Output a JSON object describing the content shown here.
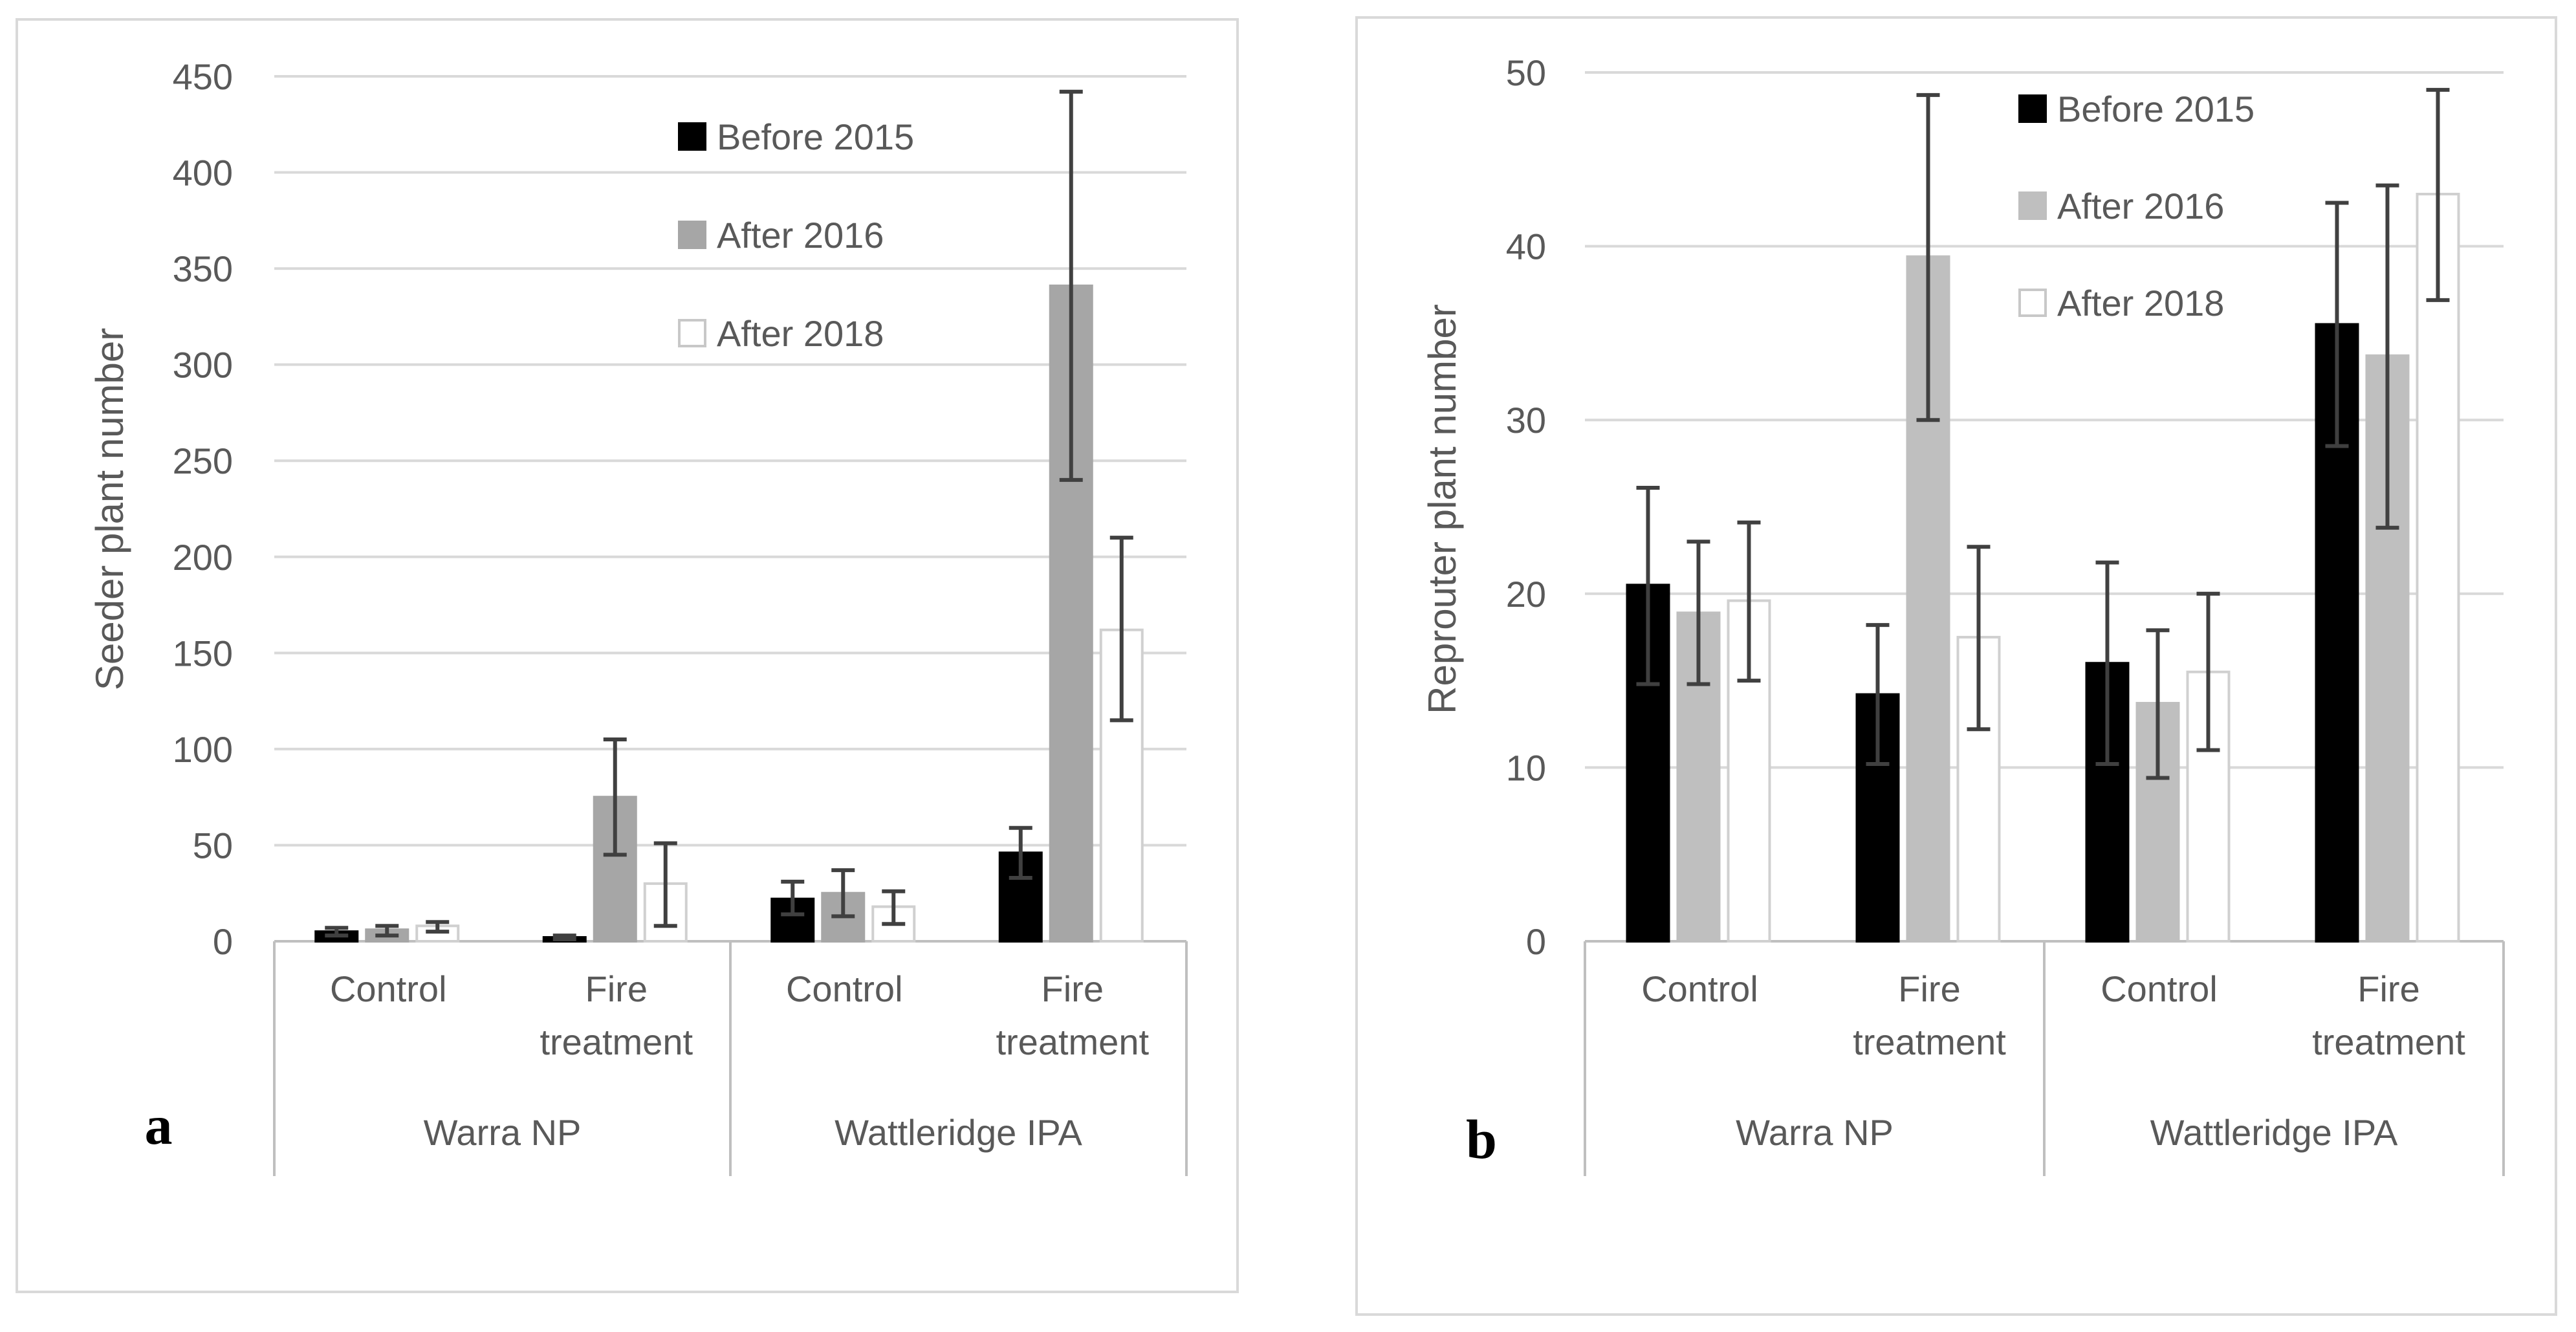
{
  "chart_data": [
    {
      "type": "bar",
      "panel_label": "a",
      "ylabel": "Seeder plant number",
      "ylim": [
        0,
        450
      ],
      "yticks": [
        0,
        50,
        100,
        150,
        200,
        250,
        300,
        350,
        400,
        450
      ],
      "grid": true,
      "legend_position": "top-right",
      "groups": [
        "Warra NP",
        "Wattleridge IPA"
      ],
      "categories": [
        "Control",
        "Fire treatment",
        "Control",
        "Fire treatment"
      ],
      "category_lines": [
        [
          "Control"
        ],
        [
          "Fire",
          "treatment"
        ],
        [
          "Control"
        ],
        [
          "Fire",
          "treatment"
        ]
      ],
      "series": [
        {
          "name": "Before 2015",
          "color": "#000000",
          "values": [
            5,
            2,
            22,
            46
          ],
          "err_low": [
            3,
            1,
            14,
            33
          ],
          "err_high": [
            7,
            3,
            31,
            59
          ]
        },
        {
          "name": "After 2016",
          "color": "#a6a6a6",
          "values": [
            6,
            75,
            25,
            341
          ],
          "err_low": [
            3,
            45,
            13,
            240
          ],
          "err_high": [
            8,
            105,
            37,
            442
          ]
        },
        {
          "name": "After 2018",
          "color": "#ffffff",
          "values": [
            8,
            30,
            18,
            162
          ],
          "err_low": [
            5,
            8,
            9,
            115
          ],
          "err_high": [
            10,
            51,
            26,
            210
          ]
        }
      ]
    },
    {
      "type": "bar",
      "panel_label": "b",
      "ylabel": "Reprouter plant number",
      "ylim": [
        0,
        50
      ],
      "yticks": [
        0,
        10,
        20,
        30,
        40,
        50
      ],
      "grid": true,
      "legend_position": "top-right",
      "groups": [
        "Warra NP",
        "Wattleridge IPA"
      ],
      "categories": [
        "Control",
        "Fire treatment",
        "Control",
        "Fire treatment"
      ],
      "category_lines": [
        [
          "Control"
        ],
        [
          "Fire",
          "treatment"
        ],
        [
          "Control"
        ],
        [
          "Fire",
          "treatment"
        ]
      ],
      "series": [
        {
          "name": "Before 2015",
          "color": "#000000",
          "values": [
            20.5,
            14.2,
            16.0,
            35.5
          ],
          "err_low": [
            14.8,
            10.2,
            10.2,
            28.5
          ],
          "err_high": [
            26.1,
            18.2,
            21.8,
            42.5
          ]
        },
        {
          "name": "After 2016",
          "color": "#bfbfbf",
          "values": [
            18.9,
            39.4,
            13.7,
            33.7
          ],
          "err_low": [
            14.8,
            30.0,
            9.4,
            23.8
          ],
          "err_high": [
            23.0,
            48.7,
            17.9,
            43.5
          ]
        },
        {
          "name": "After 2018",
          "color": "#ffffff",
          "values": [
            19.6,
            17.5,
            15.5,
            43.0
          ],
          "err_low": [
            15.0,
            12.2,
            11.0,
            36.9
          ],
          "err_high": [
            24.1,
            22.7,
            20.0,
            49.0
          ]
        }
      ]
    }
  ]
}
